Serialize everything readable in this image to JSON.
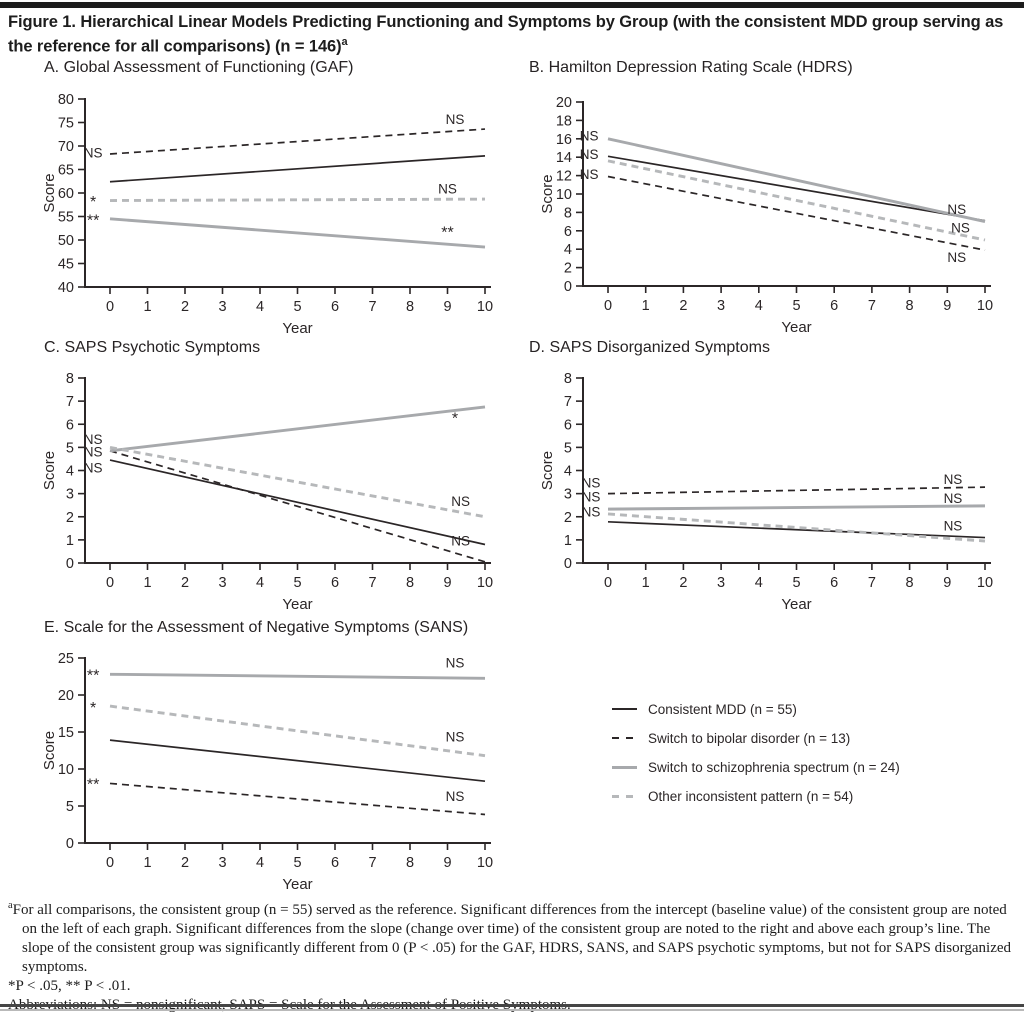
{
  "figure": {
    "title": "Figure 1. Hierarchical Linear Models Predicting Functioning and Symptoms by Group (with the consistent MDD group serving as the reference for all comparisons) (n = 146)",
    "title_superscript": "a"
  },
  "colors": {
    "axis_and_text": "#2b2627",
    "black_line": "#2b2627",
    "gray_solid_line": "#a7a9ac",
    "gray_dashed_line": "#b6b8ba"
  },
  "legend": {
    "position": "bottom-right",
    "items": [
      {
        "series": "consistent_mdd",
        "line_style": "solid-black",
        "label": "Consistent MDD (n = 55)"
      },
      {
        "series": "bipolar",
        "line_style": "dashed-black",
        "label": "Switch to bipolar disorder (n = 13)"
      },
      {
        "series": "schizophrenia",
        "line_style": "solid-gray",
        "label": "Switch to schizophrenia spectrum (n = 24)"
      },
      {
        "series": "other",
        "line_style": "dashed-gray",
        "label": "Other inconsistent pattern (n = 54)"
      }
    ]
  },
  "chart_data": [
    {
      "panel": "A",
      "type": "line",
      "title": "A. Global Assessment of Functioning (GAF)",
      "xlabel": "Year",
      "ylabel": "Score",
      "xlim": [
        0,
        10
      ],
      "xticks": [
        0,
        1,
        2,
        3,
        4,
        5,
        6,
        7,
        8,
        9,
        10
      ],
      "ylim": [
        40,
        80
      ],
      "yticks": [
        40,
        45,
        50,
        55,
        60,
        65,
        70,
        75,
        80
      ],
      "x": [
        0,
        10
      ],
      "series": [
        {
          "key": "consistent_mdd",
          "name": "Consistent MDD",
          "values": [
            62.4,
            67.9
          ]
        },
        {
          "key": "bipolar",
          "name": "Switch to bipolar disorder",
          "values": [
            68.3,
            73.6
          ]
        },
        {
          "key": "schizophrenia",
          "name": "Switch to schizophrenia spectrum",
          "values": [
            54.5,
            48.5
          ]
        },
        {
          "key": "other",
          "name": "Other inconsistent pattern",
          "values": [
            58.4,
            58.7
          ]
        }
      ],
      "annotations": [
        {
          "text": "NS",
          "x": -0.45,
          "y": 68.5,
          "series": "bipolar",
          "refers": "intercept"
        },
        {
          "text": "*",
          "x": -0.45,
          "y": 58.3,
          "series": "other",
          "refers": "intercept"
        },
        {
          "text": "**",
          "x": -0.45,
          "y": 54.4,
          "series": "schizophrenia",
          "refers": "intercept"
        },
        {
          "text": "NS",
          "x": 9.2,
          "y": 75.6,
          "series": "bipolar",
          "refers": "slope"
        },
        {
          "text": "NS",
          "x": 9.0,
          "y": 60.8,
          "series": "other",
          "refers": "slope"
        },
        {
          "text": "**",
          "x": 9.0,
          "y": 51.8,
          "series": "schizophrenia",
          "refers": "slope"
        }
      ]
    },
    {
      "panel": "B",
      "type": "line",
      "title": "B. Hamilton Depression Rating Scale (HDRS)",
      "xlabel": "Year",
      "ylabel": "Score",
      "xlim": [
        0,
        10
      ],
      "xticks": [
        0,
        1,
        2,
        3,
        4,
        5,
        6,
        7,
        8,
        9,
        10
      ],
      "ylim": [
        0,
        20
      ],
      "yticks": [
        0,
        2,
        4,
        6,
        8,
        10,
        12,
        14,
        16,
        18,
        20
      ],
      "x": [
        0,
        10
      ],
      "series": [
        {
          "key": "consistent_mdd",
          "name": "Consistent MDD",
          "values": [
            14.1,
            7.1
          ]
        },
        {
          "key": "bipolar",
          "name": "Switch to bipolar disorder",
          "values": [
            11.9,
            3.9
          ]
        },
        {
          "key": "schizophrenia",
          "name": "Switch to schizophrenia spectrum",
          "values": [
            16.0,
            7.0
          ]
        },
        {
          "key": "other",
          "name": "Other inconsistent pattern",
          "values": [
            13.6,
            5.0
          ]
        }
      ],
      "annotations": [
        {
          "text": "NS",
          "x": -0.5,
          "y": 16.3,
          "series": "schizophrenia",
          "refers": "intercept"
        },
        {
          "text": "NS",
          "x": -0.5,
          "y": 14.3,
          "series": "other",
          "refers": "intercept"
        },
        {
          "text": "NS",
          "x": -0.5,
          "y": 12.1,
          "series": "bipolar",
          "refers": "intercept"
        },
        {
          "text": "NS",
          "x": 9.25,
          "y": 8.3,
          "series": "schizophrenia",
          "refers": "slope"
        },
        {
          "text": "NS",
          "x": 9.35,
          "y": 6.3,
          "series": "other",
          "refers": "slope"
        },
        {
          "text": "NS",
          "x": 9.25,
          "y": 3.1,
          "series": "bipolar",
          "refers": "slope"
        }
      ]
    },
    {
      "panel": "C",
      "type": "line",
      "title": "C. SAPS Psychotic Symptoms",
      "xlabel": "Year",
      "ylabel": "Score",
      "xlim": [
        0,
        10
      ],
      "xticks": [
        0,
        1,
        2,
        3,
        4,
        5,
        6,
        7,
        8,
        9,
        10
      ],
      "ylim": [
        0,
        8
      ],
      "yticks": [
        0,
        1,
        2,
        3,
        4,
        5,
        6,
        7,
        8
      ],
      "x": [
        0,
        10
      ],
      "series": [
        {
          "key": "consistent_mdd",
          "name": "Consistent MDD",
          "values": [
            4.45,
            0.8
          ]
        },
        {
          "key": "bipolar",
          "name": "Switch to bipolar disorder",
          "values": [
            4.85,
            0.05
          ]
        },
        {
          "key": "schizophrenia",
          "name": "Switch to schizophrenia spectrum",
          "values": [
            4.85,
            6.75
          ]
        },
        {
          "key": "other",
          "name": "Other inconsistent pattern",
          "values": [
            5.0,
            2.0
          ]
        }
      ],
      "annotations": [
        {
          "text": "NS",
          "x": -0.45,
          "y": 5.35,
          "series": "other",
          "refers": "intercept"
        },
        {
          "text": "NS",
          "x": -0.45,
          "y": 4.8,
          "series": "schizophrenia",
          "refers": "intercept"
        },
        {
          "text": "NS",
          "x": -0.45,
          "y": 4.1,
          "series": "bipolar",
          "refers": "intercept"
        },
        {
          "text": "*",
          "x": 9.2,
          "y": 6.3,
          "series": "schizophrenia",
          "refers": "slope"
        },
        {
          "text": "NS",
          "x": 9.35,
          "y": 2.65,
          "series": "other",
          "refers": "slope"
        },
        {
          "text": "NS",
          "x": 9.35,
          "y": 0.95,
          "series": "bipolar",
          "refers": "slope"
        }
      ]
    },
    {
      "panel": "D",
      "type": "line",
      "title": "D. SAPS Disorganized Symptoms",
      "xlabel": "Year",
      "ylabel": "Score",
      "xlim": [
        0,
        10
      ],
      "xticks": [
        0,
        1,
        2,
        3,
        4,
        5,
        6,
        7,
        8,
        9,
        10
      ],
      "ylim": [
        0,
        8
      ],
      "yticks": [
        0,
        1,
        2,
        3,
        4,
        5,
        6,
        7,
        8
      ],
      "x": [
        0,
        10
      ],
      "series": [
        {
          "key": "consistent_mdd",
          "name": "Consistent MDD",
          "values": [
            1.78,
            1.1
          ]
        },
        {
          "key": "bipolar",
          "name": "Switch to bipolar disorder",
          "values": [
            3.0,
            3.28
          ]
        },
        {
          "key": "schizophrenia",
          "name": "Switch to schizophrenia spectrum",
          "values": [
            2.33,
            2.47
          ]
        },
        {
          "key": "other",
          "name": "Other inconsistent pattern",
          "values": [
            2.12,
            0.95
          ]
        }
      ],
      "annotations": [
        {
          "text": "NS",
          "x": -0.45,
          "y": 3.45,
          "series": "bipolar",
          "refers": "intercept"
        },
        {
          "text": "NS",
          "x": -0.45,
          "y": 2.85,
          "series": "schizophrenia",
          "refers": "intercept"
        },
        {
          "text": "NS",
          "x": -0.45,
          "y": 2.2,
          "series": "other",
          "refers": "intercept"
        },
        {
          "text": "NS",
          "x": 9.15,
          "y": 3.62,
          "series": "bipolar",
          "refers": "slope"
        },
        {
          "text": "NS",
          "x": 9.15,
          "y": 2.78,
          "series": "schizophrenia",
          "refers": "slope"
        },
        {
          "text": "NS",
          "x": 9.15,
          "y": 1.6,
          "series": "other",
          "refers": "slope"
        }
      ]
    },
    {
      "panel": "E",
      "type": "line",
      "title": "E. Scale for the Assessment of Negative Symptoms (SANS)",
      "xlabel": "Year",
      "ylabel": "Score",
      "xlim": [
        0,
        10
      ],
      "xticks": [
        0,
        1,
        2,
        3,
        4,
        5,
        6,
        7,
        8,
        9,
        10
      ],
      "ylim": [
        0,
        25
      ],
      "yticks": [
        0,
        5,
        10,
        15,
        20,
        25
      ],
      "x": [
        0,
        10
      ],
      "series": [
        {
          "key": "consistent_mdd",
          "name": "Consistent MDD",
          "values": [
            13.9,
            8.35
          ]
        },
        {
          "key": "bipolar",
          "name": "Switch to bipolar disorder",
          "values": [
            8.05,
            3.85
          ]
        },
        {
          "key": "schizophrenia",
          "name": "Switch to schizophrenia spectrum",
          "values": [
            22.8,
            22.25
          ]
        },
        {
          "key": "other",
          "name": "Other inconsistent pattern",
          "values": [
            18.5,
            11.8
          ]
        }
      ],
      "annotations": [
        {
          "text": "**",
          "x": -0.45,
          "y": 22.8,
          "series": "schizophrenia",
          "refers": "intercept"
        },
        {
          "text": "*",
          "x": -0.45,
          "y": 18.4,
          "series": "other",
          "refers": "intercept"
        },
        {
          "text": "**",
          "x": -0.45,
          "y": 8.05,
          "series": "bipolar",
          "refers": "intercept"
        },
        {
          "text": "NS",
          "x": 9.2,
          "y": 24.3,
          "series": "schizophrenia",
          "refers": "slope"
        },
        {
          "text": "NS",
          "x": 9.2,
          "y": 14.3,
          "series": "other",
          "refers": "slope"
        },
        {
          "text": "NS",
          "x": 9.2,
          "y": 6.3,
          "series": "bipolar",
          "refers": "slope"
        }
      ]
    }
  ],
  "footnotes": {
    "marker": "a",
    "note": "For all comparisons, the consistent group (n = 55) served as the reference. Significant differences from the intercept (baseline value) of the consistent group are noted on the left of each graph. Significant differences from the slope (change over time) of the consistent group are noted to the right and above each group’s line. The slope of the consistent group was significantly different from 0 (P < .05) for the GAF, HDRS, SANS, and SAPS psychotic symptoms, but not for SAPS disorganized symptoms.",
    "significance": "*P < .05, ** P < .01.",
    "abbreviations": "Abbreviations: NS = nonsignificant, SAPS = Scale for the Assessment of Positive Symptoms."
  }
}
